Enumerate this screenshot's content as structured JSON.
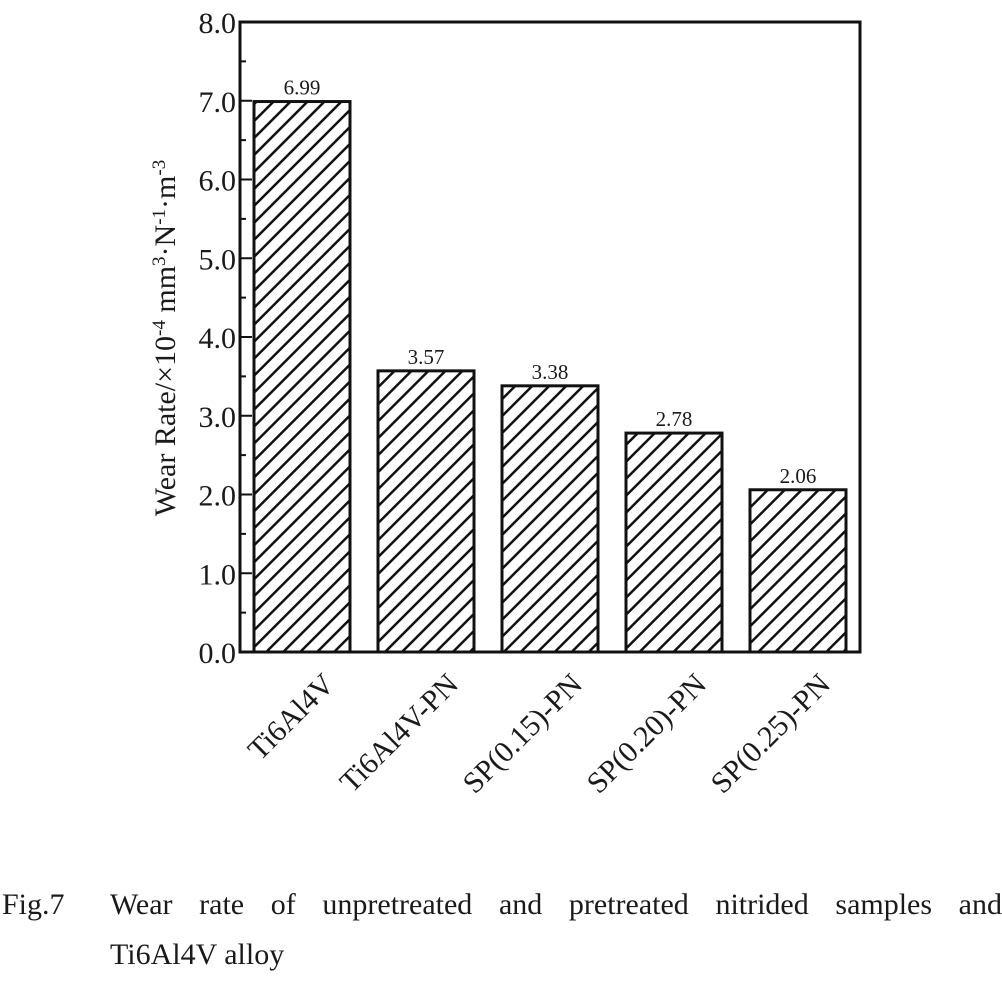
{
  "chart_data": {
    "type": "bar",
    "categories": [
      "Ti6Al4V",
      "Ti6Al4V-PN",
      "SP(0.15)-PN",
      "SP(0.20)-PN",
      "SP(0.25)-PN"
    ],
    "values": [
      6.99,
      3.57,
      3.38,
      2.78,
      2.06
    ],
    "data_labels": [
      "6.99",
      "3.57",
      "3.38",
      "2.78",
      "2.06"
    ],
    "ylabel": "Wear Rate/×10-4 mm3·N-1·m-3",
    "ylabel_parts": {
      "prefix": "Wear Rate/×10",
      "exp1": "-4",
      "mid1": " mm",
      "exp2": "3",
      "mid2": "·N",
      "exp3": "-1",
      "mid3": "·m",
      "exp4": "-3"
    },
    "ylim": [
      0,
      8
    ],
    "yticks": [
      "0.0",
      "1.0",
      "2.0",
      "3.0",
      "4.0",
      "5.0",
      "6.0",
      "7.0",
      "8.0"
    ],
    "bar_fill": "hatched",
    "colors": {
      "bar_edge": "#111111",
      "hatch": "#111111",
      "background": "#ffffff"
    }
  },
  "caption": {
    "number": "Fig.7",
    "line1": "Wear rate of unpretreated and pretreated nitrided samples and",
    "line2": "Ti6Al4V alloy"
  }
}
